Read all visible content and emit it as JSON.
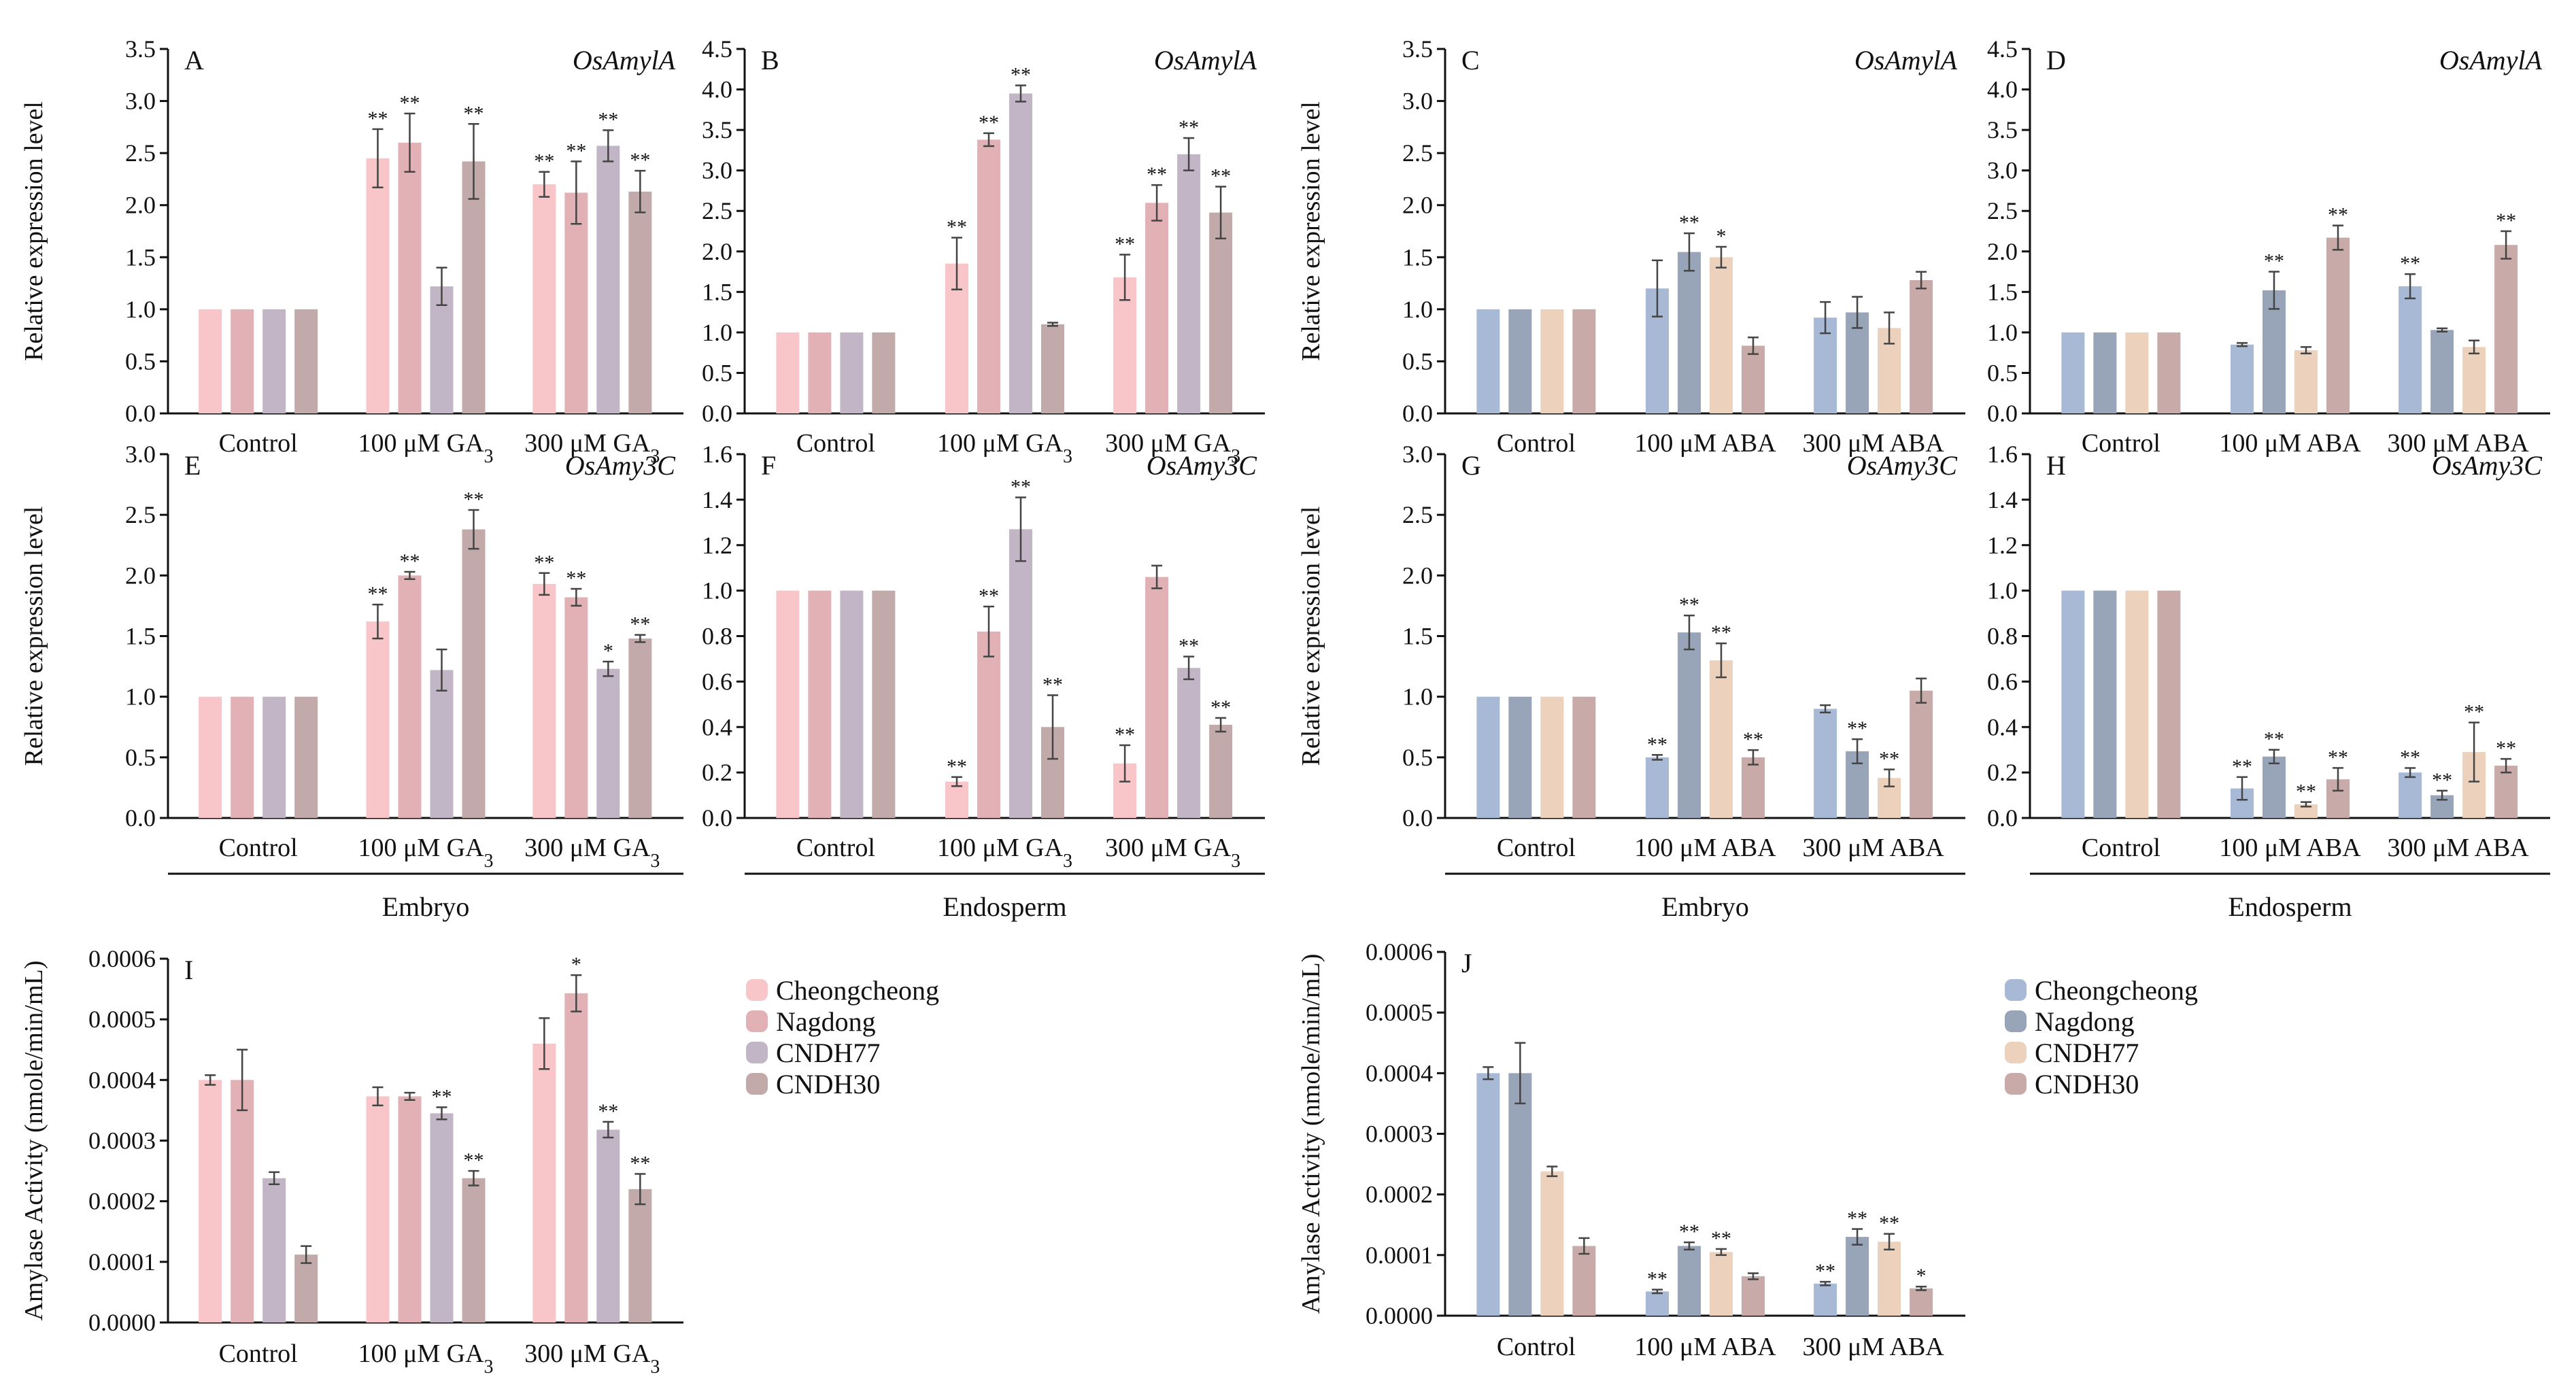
{
  "colors": {
    "ga": [
      "#f8c5c9",
      "#e2b1b6",
      "#c2b5c6",
      "#c2aaaa"
    ],
    "aba": [
      "#a8b9d6",
      "#98a4b8",
      "#ecd2bc",
      "#c8aba8"
    ],
    "axis": "#111111",
    "err": "#444444"
  },
  "chart_data": [
    {
      "id": "A",
      "type": "bar",
      "panel_label": "A",
      "gene": "OsAmylA",
      "ylabel": "Relative expression level",
      "ylim": [
        0,
        3.5
      ],
      "ticks": [
        "0.0",
        "0.5",
        "1.0",
        "1.5",
        "2.0",
        "2.5",
        "3.0",
        "3.5"
      ],
      "groups": [
        "Control",
        "100 μM GA3",
        "300 μM GA3"
      ],
      "palette": "ga",
      "series": [
        {
          "name": "Cheongcheong",
          "values": [
            1,
            2.45,
            2.2
          ],
          "errors": [
            0,
            0.28,
            0.12
          ],
          "sig": [
            "",
            "**",
            "**"
          ]
        },
        {
          "name": "Nagdong",
          "values": [
            1,
            2.6,
            2.12
          ],
          "errors": [
            0,
            0.28,
            0.3
          ],
          "sig": [
            "",
            "**",
            "**"
          ]
        },
        {
          "name": "CNDH77",
          "values": [
            1,
            1.22,
            2.57
          ],
          "errors": [
            0,
            0.18,
            0.15
          ],
          "sig": [
            "",
            "",
            "**"
          ]
        },
        {
          "name": "CNDH30",
          "values": [
            1,
            2.42,
            2.13
          ],
          "errors": [
            0,
            0.36,
            0.2
          ],
          "sig": [
            "",
            "**",
            "**"
          ]
        }
      ]
    },
    {
      "id": "B",
      "type": "bar",
      "panel_label": "B",
      "gene": "OsAmylA",
      "ylabel": "",
      "ylim": [
        0,
        4.5
      ],
      "ticks": [
        "0.0",
        "0.5",
        "1.0",
        "1.5",
        "2.0",
        "2.5",
        "3.0",
        "3.5",
        "4.0",
        "4.5"
      ],
      "groups": [
        "Control",
        "100 μM GA3",
        "300 μM GA3"
      ],
      "palette": "ga",
      "series": [
        {
          "name": "Cheongcheong",
          "values": [
            1,
            1.85,
            1.68
          ],
          "errors": [
            0,
            0.32,
            0.28
          ],
          "sig": [
            "",
            "**",
            "**"
          ]
        },
        {
          "name": "Nagdong",
          "values": [
            1,
            3.38,
            2.6
          ],
          "errors": [
            0,
            0.08,
            0.22
          ],
          "sig": [
            "",
            "**",
            "**"
          ]
        },
        {
          "name": "CNDH77",
          "values": [
            1,
            3.95,
            3.2
          ],
          "errors": [
            0,
            0.1,
            0.2
          ],
          "sig": [
            "",
            "**",
            "**"
          ]
        },
        {
          "name": "CNDH30",
          "values": [
            1,
            1.1,
            2.48
          ],
          "errors": [
            0,
            0.02,
            0.32
          ],
          "sig": [
            "",
            "",
            "**"
          ]
        }
      ]
    },
    {
      "id": "C",
      "type": "bar",
      "panel_label": "C",
      "gene": "OsAmylA",
      "ylabel": "Relative expression level",
      "ylim": [
        0,
        3.5
      ],
      "ticks": [
        "0.0",
        "0.5",
        "1.0",
        "1.5",
        "2.0",
        "2.5",
        "3.0",
        "3.5"
      ],
      "groups": [
        "Control",
        "100 μM ABA",
        "300 μM ABA"
      ],
      "palette": "aba",
      "series": [
        {
          "name": "Cheongcheong",
          "values": [
            1,
            1.2,
            0.92
          ],
          "errors": [
            0,
            0.27,
            0.15
          ],
          "sig": [
            "",
            "",
            ""
          ]
        },
        {
          "name": "Nagdong",
          "values": [
            1,
            1.55,
            0.97
          ],
          "errors": [
            0,
            0.18,
            0.15
          ],
          "sig": [
            "",
            "**",
            ""
          ]
        },
        {
          "name": "CNDH77",
          "values": [
            1,
            1.5,
            0.82
          ],
          "errors": [
            0,
            0.1,
            0.15
          ],
          "sig": [
            "",
            "*",
            ""
          ]
        },
        {
          "name": "CNDH30",
          "values": [
            1,
            0.65,
            1.28
          ],
          "errors": [
            0,
            0.08,
            0.08
          ],
          "sig": [
            "",
            "",
            ""
          ]
        }
      ]
    },
    {
      "id": "D",
      "type": "bar",
      "panel_label": "D",
      "gene": "OsAmylA",
      "ylabel": "",
      "ylim": [
        0,
        4.5
      ],
      "ticks": [
        "0.0",
        "0.5",
        "1.0",
        "1.5",
        "2.0",
        "2.5",
        "3.0",
        "3.5",
        "4.0",
        "4.5"
      ],
      "groups": [
        "Control",
        "100 μM ABA",
        "300 μM ABA"
      ],
      "palette": "aba",
      "series": [
        {
          "name": "Cheongcheong",
          "values": [
            1,
            0.85,
            1.57
          ],
          "errors": [
            0,
            0.02,
            0.15
          ],
          "sig": [
            "",
            "",
            "**"
          ]
        },
        {
          "name": "Nagdong",
          "values": [
            1,
            1.52,
            1.03
          ],
          "errors": [
            0,
            0.23,
            0.02
          ],
          "sig": [
            "",
            "**",
            ""
          ]
        },
        {
          "name": "CNDH77",
          "values": [
            1,
            0.78,
            0.82
          ],
          "errors": [
            0,
            0.04,
            0.08
          ],
          "sig": [
            "",
            "",
            ""
          ]
        },
        {
          "name": "CNDH30",
          "values": [
            1,
            2.17,
            2.08
          ],
          "errors": [
            0,
            0.15,
            0.17
          ],
          "sig": [
            "",
            "**",
            "**"
          ]
        }
      ]
    },
    {
      "id": "E",
      "type": "bar",
      "panel_label": "E",
      "gene": "OsAmy3C",
      "ylabel": "Relative expression level",
      "ylim": [
        0,
        3.0
      ],
      "ticks": [
        "0.0",
        "0.5",
        "1.0",
        "1.5",
        "2.0",
        "2.5",
        "3.0"
      ],
      "groups": [
        "Control",
        "100 μM GA3",
        "300 μM GA3"
      ],
      "palette": "ga",
      "series": [
        {
          "name": "Cheongcheong",
          "values": [
            1,
            1.62,
            1.93
          ],
          "errors": [
            0,
            0.14,
            0.09
          ],
          "sig": [
            "",
            "**",
            "**"
          ]
        },
        {
          "name": "Nagdong",
          "values": [
            1,
            2.0,
            1.82
          ],
          "errors": [
            0,
            0.03,
            0.07
          ],
          "sig": [
            "",
            "**",
            "**"
          ]
        },
        {
          "name": "CNDH77",
          "values": [
            1,
            1.22,
            1.23
          ],
          "errors": [
            0,
            0.17,
            0.06
          ],
          "sig": [
            "",
            "",
            "*"
          ]
        },
        {
          "name": "CNDH30",
          "values": [
            1,
            2.38,
            1.48
          ],
          "errors": [
            0,
            0.16,
            0.03
          ],
          "sig": [
            "",
            "**",
            "**"
          ]
        }
      ]
    },
    {
      "id": "F",
      "type": "bar",
      "panel_label": "F",
      "gene": "OsAmy3C",
      "ylabel": "",
      "ylim": [
        0,
        1.6
      ],
      "ticks": [
        "0.0",
        "0.2",
        "0.4",
        "0.6",
        "0.8",
        "1.0",
        "1.2",
        "1.4",
        "1.6"
      ],
      "groups": [
        "Control",
        "100 μM GA3",
        "300 μM GA3"
      ],
      "palette": "ga",
      "series": [
        {
          "name": "Cheongcheong",
          "values": [
            1,
            0.16,
            0.24
          ],
          "errors": [
            0,
            0.02,
            0.08
          ],
          "sig": [
            "",
            "**",
            "**"
          ]
        },
        {
          "name": "Nagdong",
          "values": [
            1,
            0.82,
            1.06
          ],
          "errors": [
            0,
            0.11,
            0.05
          ],
          "sig": [
            "",
            "**",
            ""
          ]
        },
        {
          "name": "CNDH77",
          "values": [
            1,
            1.27,
            0.66
          ],
          "errors": [
            0,
            0.14,
            0.05
          ],
          "sig": [
            "",
            "**",
            "**"
          ]
        },
        {
          "name": "CNDH30",
          "values": [
            1,
            0.4,
            0.41
          ],
          "errors": [
            0,
            0.14,
            0.03
          ],
          "sig": [
            "",
            "**",
            "**"
          ]
        }
      ]
    },
    {
      "id": "G",
      "type": "bar",
      "panel_label": "G",
      "gene": "OsAmy3C",
      "ylabel": "Relative expression level",
      "ylim": [
        0,
        3.0
      ],
      "ticks": [
        "0.0",
        "0.5",
        "1.0",
        "1.5",
        "2.0",
        "2.5",
        "3.0"
      ],
      "groups": [
        "Control",
        "100 μM ABA",
        "300 μM ABA"
      ],
      "palette": "aba",
      "series": [
        {
          "name": "Cheongcheong",
          "values": [
            1,
            0.5,
            0.9
          ],
          "errors": [
            0,
            0.02,
            0.03
          ],
          "sig": [
            "",
            "**",
            ""
          ]
        },
        {
          "name": "Nagdong",
          "values": [
            1,
            1.53,
            0.55
          ],
          "errors": [
            0,
            0.14,
            0.1
          ],
          "sig": [
            "",
            "**",
            "**"
          ]
        },
        {
          "name": "CNDH77",
          "values": [
            1,
            1.3,
            0.33
          ],
          "errors": [
            0,
            0.14,
            0.07
          ],
          "sig": [
            "",
            "**",
            "**"
          ]
        },
        {
          "name": "CNDH30",
          "values": [
            1,
            0.5,
            1.05
          ],
          "errors": [
            0,
            0.06,
            0.1
          ],
          "sig": [
            "",
            "**",
            ""
          ]
        }
      ]
    },
    {
      "id": "H",
      "type": "bar",
      "panel_label": "H",
      "gene": "OsAmy3C",
      "ylabel": "",
      "ylim": [
        0,
        1.6
      ],
      "ticks": [
        "0.0",
        "0.2",
        "0.4",
        "0.6",
        "0.8",
        "1.0",
        "1.2",
        "1.4",
        "1.6"
      ],
      "groups": [
        "Control",
        "100 μM ABA",
        "300 μM ABA"
      ],
      "palette": "aba",
      "series": [
        {
          "name": "Cheongcheong",
          "values": [
            1,
            0.13,
            0.2
          ],
          "errors": [
            0,
            0.05,
            0.02
          ],
          "sig": [
            "",
            "**",
            "**"
          ]
        },
        {
          "name": "Nagdong",
          "values": [
            1,
            0.27,
            0.1
          ],
          "errors": [
            0,
            0.03,
            0.02
          ],
          "sig": [
            "",
            "**",
            "**"
          ]
        },
        {
          "name": "CNDH77",
          "values": [
            1,
            0.06,
            0.29
          ],
          "errors": [
            0,
            0.01,
            0.13
          ],
          "sig": [
            "",
            "**",
            "**"
          ]
        },
        {
          "name": "CNDH30",
          "values": [
            1,
            0.17,
            0.23
          ],
          "errors": [
            0,
            0.05,
            0.03
          ],
          "sig": [
            "",
            "**",
            "**"
          ]
        }
      ]
    },
    {
      "id": "I",
      "type": "bar",
      "panel_label": "I",
      "gene": "",
      "ylabel": "Amylase Activity  (nmole/min/mL)",
      "ylim": [
        0,
        0.0006
      ],
      "ticks": [
        "0.0000",
        "0.0001",
        "0.0002",
        "0.0003",
        "0.0004",
        "0.0005",
        "0.0006"
      ],
      "groups": [
        "Control",
        "100 μM GA3",
        "300 μM GA3"
      ],
      "palette": "ga",
      "series": [
        {
          "name": "Cheongcheong",
          "values": [
            0.0004,
            0.000373,
            0.00046
          ],
          "errors": [
            8e-06,
            1.5e-05,
            4.2e-05
          ],
          "sig": [
            "",
            "",
            ""
          ]
        },
        {
          "name": "Nagdong",
          "values": [
            0.0004,
            0.000373,
            0.000543
          ],
          "errors": [
            5e-05,
            6e-06,
            3e-05
          ],
          "sig": [
            "",
            "",
            "*"
          ]
        },
        {
          "name": "CNDH77",
          "values": [
            0.000238,
            0.000345,
            0.000318
          ],
          "errors": [
            1e-05,
            1e-05,
            1.3e-05
          ],
          "sig": [
            "",
            "**",
            "**"
          ]
        },
        {
          "name": "CNDH30",
          "values": [
            0.000112,
            0.000238,
            0.00022
          ],
          "errors": [
            1.4e-05,
            1.2e-05,
            2.5e-05
          ],
          "sig": [
            "",
            "**",
            "**"
          ]
        }
      ]
    },
    {
      "id": "J",
      "type": "bar",
      "panel_label": "J",
      "gene": "",
      "ylabel": "Amylase Activity  (nmole/min/mL)",
      "ylim": [
        0,
        0.0006
      ],
      "ticks": [
        "0.0000",
        "0.0001",
        "0.0002",
        "0.0003",
        "0.0004",
        "0.0005",
        "0.0006"
      ],
      "groups": [
        "Control",
        "100 μM ABA",
        "300 μM ABA"
      ],
      "palette": "aba",
      "series": [
        {
          "name": "Cheongcheong",
          "values": [
            0.0004,
            4e-05,
            5.3e-05
          ],
          "errors": [
            1e-05,
            3e-06,
            3e-06
          ],
          "sig": [
            "",
            "**",
            "**"
          ]
        },
        {
          "name": "Nagdong",
          "values": [
            0.0004,
            0.000115,
            0.00013
          ],
          "errors": [
            5e-05,
            6e-06,
            1.3e-05
          ],
          "sig": [
            "",
            "**",
            "**"
          ]
        },
        {
          "name": "CNDH77",
          "values": [
            0.000238,
            0.000105,
            0.000122
          ],
          "errors": [
            8e-06,
            5e-06,
            1.3e-05
          ],
          "sig": [
            "",
            "**",
            "**"
          ]
        },
        {
          "name": "CNDH30",
          "values": [
            0.000115,
            6.5e-05,
            4.5e-05
          ],
          "errors": [
            1.3e-05,
            5e-06,
            3e-06
          ],
          "sig": [
            "",
            "",
            "*"
          ]
        }
      ]
    }
  ],
  "group_labels": {
    "embryo": "Embryo",
    "endosperm": "Endosperm"
  },
  "legends": {
    "ga": [
      "Cheongcheong",
      "Nagdong",
      "CNDH77",
      "CNDH30"
    ],
    "aba": [
      "Cheongcheong",
      "Nagdong",
      "CNDH77",
      "CNDH30"
    ]
  }
}
